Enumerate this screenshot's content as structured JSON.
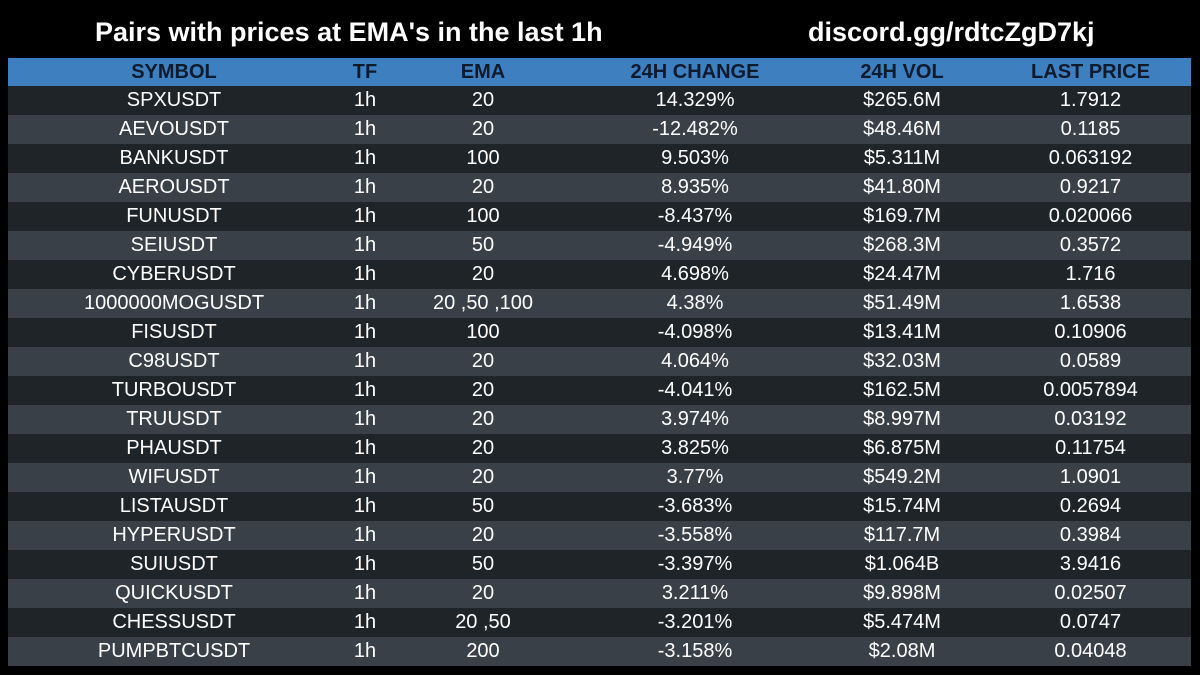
{
  "header": {
    "title": "Pairs with prices at EMA's in the last 1h",
    "link": "discord.gg/rdtcZgD7kj"
  },
  "table": {
    "columns": [
      "SYMBOL",
      "TF",
      "EMA",
      "24H CHANGE",
      "24H VOL",
      "LAST PRICE"
    ],
    "rows": [
      [
        "SPXUSDT",
        "1h",
        "20",
        "14.329%",
        "$265.6M",
        "1.7912"
      ],
      [
        "AEVOUSDT",
        "1h",
        "20",
        "-12.482%",
        "$48.46M",
        "0.1185"
      ],
      [
        "BANKUSDT",
        "1h",
        "100",
        "9.503%",
        "$5.311M",
        "0.063192"
      ],
      [
        "AEROUSDT",
        "1h",
        "20",
        "8.935%",
        "$41.80M",
        "0.9217"
      ],
      [
        "FUNUSDT",
        "1h",
        "100",
        "-8.437%",
        "$169.7M",
        "0.020066"
      ],
      [
        "SEIUSDT",
        "1h",
        "50",
        "-4.949%",
        "$268.3M",
        "0.3572"
      ],
      [
        "CYBERUSDT",
        "1h",
        "20",
        "4.698%",
        "$24.47M",
        "1.716"
      ],
      [
        "1000000MOGUSDT",
        "1h",
        "20 ,50 ,100",
        "4.38%",
        "$51.49M",
        "1.6538"
      ],
      [
        "FISUSDT",
        "1h",
        "100",
        "-4.098%",
        "$13.41M",
        "0.10906"
      ],
      [
        "C98USDT",
        "1h",
        "20",
        "4.064%",
        "$32.03M",
        "0.0589"
      ],
      [
        "TURBOUSDT",
        "1h",
        "20",
        "-4.041%",
        "$162.5M",
        "0.0057894"
      ],
      [
        "TRUUSDT",
        "1h",
        "20",
        "3.974%",
        "$8.997M",
        "0.03192"
      ],
      [
        "PHAUSDT",
        "1h",
        "20",
        "3.825%",
        "$6.875M",
        "0.11754"
      ],
      [
        "WIFUSDT",
        "1h",
        "20",
        "3.77%",
        "$549.2M",
        "1.0901"
      ],
      [
        "LISTAUSDT",
        "1h",
        "50",
        "-3.683%",
        "$15.74M",
        "0.2694"
      ],
      [
        "HYPERUSDT",
        "1h",
        "20",
        "-3.558%",
        "$117.7M",
        "0.3984"
      ],
      [
        "SUIUSDT",
        "1h",
        "50",
        "-3.397%",
        "$1.064B",
        "3.9416"
      ],
      [
        "QUICKUSDT",
        "1h",
        "20",
        "3.211%",
        "$9.898M",
        "0.02507"
      ],
      [
        "CHESSUSDT",
        "1h",
        "20 ,50",
        "-3.201%",
        "$5.474M",
        "0.0747"
      ],
      [
        "PUMPBTCUSDT",
        "1h",
        "200",
        "-3.158%",
        "$2.08M",
        "0.04048"
      ]
    ]
  }
}
